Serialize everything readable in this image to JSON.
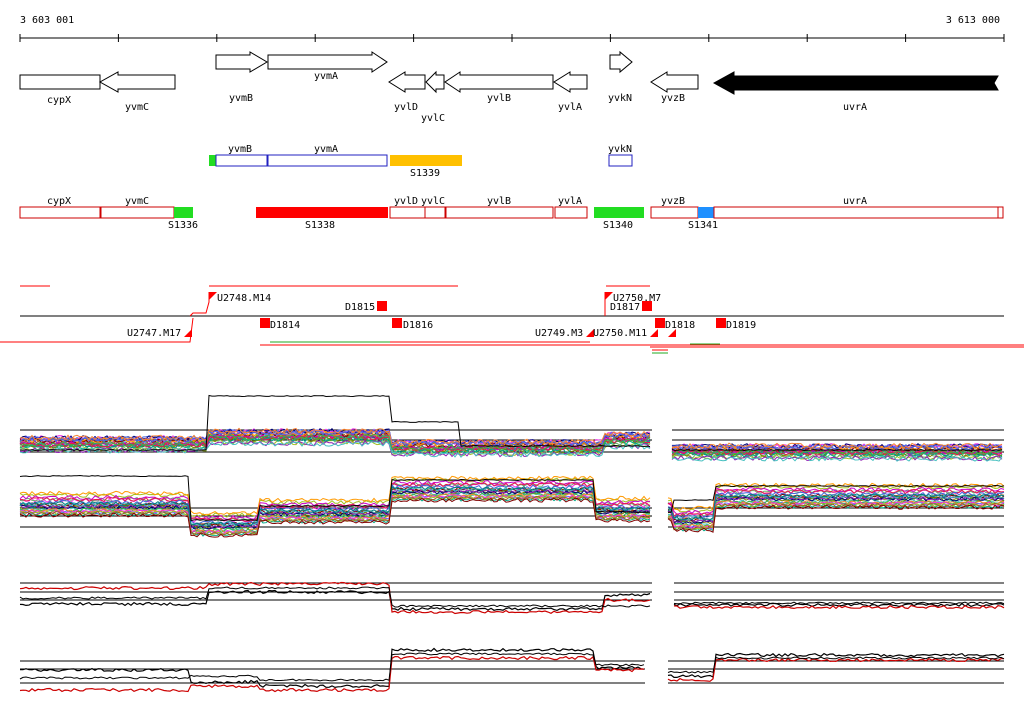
{
  "coords": {
    "start": "3 603 001",
    "end": "3 613 000"
  },
  "colors": {
    "gene_stroke": "#000000",
    "region_stroke": "#cc0000",
    "uvrA_fill": "#000000",
    "green": "#22dd22",
    "yellow": "#ffc000",
    "red": "#ff0000",
    "blue": "#1e90ff"
  },
  "genes": [
    {
      "name": "cypX",
      "strand": "+"
    },
    {
      "name": "yvmC",
      "strand": "-"
    },
    {
      "name": "yvmB",
      "strand": "+"
    },
    {
      "name": "yvmA",
      "strand": "+"
    },
    {
      "name": "yvlD",
      "strand": "-"
    },
    {
      "name": "yvlC",
      "strand": "-"
    },
    {
      "name": "yvlB",
      "strand": "-"
    },
    {
      "name": "yvlA",
      "strand": "-"
    },
    {
      "name": "yvkN",
      "strand": "+"
    },
    {
      "name": "yvzB",
      "strand": "-"
    },
    {
      "name": "uvrA",
      "strand": "-"
    }
  ],
  "upper_track_labels": [
    "yvmB",
    "yvmA",
    "yvkN",
    "S1339"
  ],
  "lower_track_labels": [
    "cypX",
    "yvmC",
    "yvlD",
    "yvlC",
    "yvlB",
    "yvlA",
    "yvzB",
    "uvrA",
    "S1336",
    "S1338",
    "S1340",
    "S1341"
  ],
  "tss_labels": [
    "U2748.M14",
    "D1815",
    "U2750.M7",
    "D1817",
    "U2747.M17",
    "D1814",
    "D1816",
    "U2749.M3",
    "U2750.M11",
    "D1818",
    "D1819"
  ],
  "expression_panels": [
    "panel-1",
    "panel-2",
    "panel-3",
    "panel-4"
  ]
}
